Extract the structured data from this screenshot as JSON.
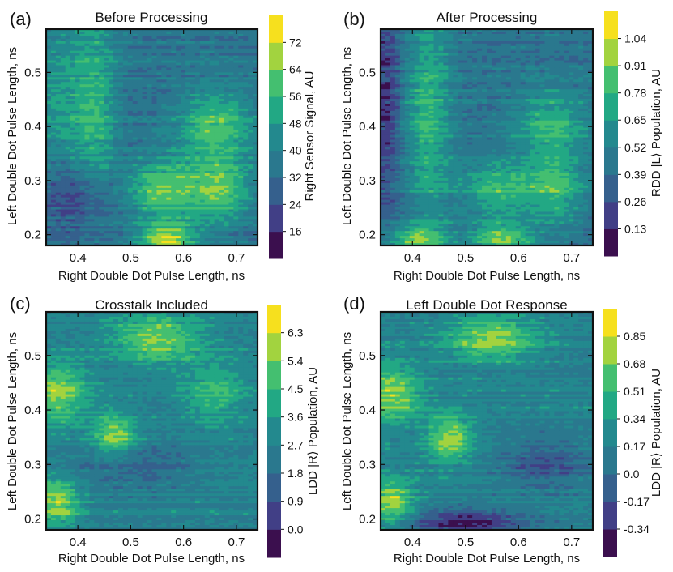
{
  "figure": {
    "panels": [
      {
        "label": "(a)",
        "title": "Before Processing",
        "xlabel": "Right Double Dot Pulse Length, ns",
        "ylabel": "Left Double Dot Pulse Length, ns",
        "colorbar_label": "Right Sensor Signal, AU"
      },
      {
        "label": "(b)",
        "title": "After Processing",
        "xlabel": "Right Double Dot Pulse Length, ns",
        "ylabel": "Left Double Dot Pulse Length, ns",
        "colorbar_label": "RDD |L⟩ Population, AU"
      },
      {
        "label": "(c)",
        "title": "Crosstalk Included",
        "xlabel": "Right Double Dot Pulse Length, ns",
        "ylabel": "Left Double Dot Pulse Length, ns",
        "colorbar_label": "LDD |R⟩ Population, AU"
      },
      {
        "label": "(d)",
        "title": "Left Double Dot Response",
        "xlabel": "Right Double Dot Pulse Length, ns",
        "ylabel": "Left Double Dot Pulse Length, ns",
        "colorbar_label": "LDD |R⟩ Population, AU"
      }
    ]
  },
  "chart_data": [
    {
      "type": "heatmap",
      "title": "Before Processing",
      "xlabel": "Right Double Dot Pulse Length, ns",
      "ylabel": "Left Double Dot Pulse Length, ns",
      "xlim": [
        0.34,
        0.74
      ],
      "ylim": [
        0.18,
        0.58
      ],
      "xticks": [
        0.4,
        0.5,
        0.6,
        0.7
      ],
      "xtick_labels": [
        "0.4",
        "0.5",
        "0.6",
        "0.7"
      ],
      "yticks": [
        0.2,
        0.3,
        0.4,
        0.5
      ],
      "ytick_labels": [
        "0.2",
        "0.3",
        "0.4",
        "0.5"
      ],
      "colorbar": {
        "label": "Right Sensor Signal, AU",
        "range": [
          8,
          80
        ],
        "levels": 9,
        "ticks": [
          16,
          24,
          32,
          40,
          48,
          56,
          64,
          72
        ],
        "tick_labels": [
          "16",
          "24",
          "32",
          "40",
          "48",
          "56",
          "64",
          "72"
        ]
      },
      "features": [
        {
          "x": 0.43,
          "y": 0.42,
          "amp": 0.35,
          "sx": 0.03,
          "sy": 0.14
        },
        {
          "x": 0.66,
          "y": 0.4,
          "amp": 0.4,
          "sx": 0.05,
          "sy": 0.05
        },
        {
          "x": 0.56,
          "y": 0.28,
          "amp": 0.45,
          "sx": 0.05,
          "sy": 0.04
        },
        {
          "x": 0.67,
          "y": 0.28,
          "amp": 0.4,
          "sx": 0.04,
          "sy": 0.04
        },
        {
          "x": 0.57,
          "y": 0.19,
          "amp": 0.55,
          "sx": 0.04,
          "sy": 0.02
        },
        {
          "x": 0.36,
          "y": 0.45,
          "amp": 0.2,
          "sx": 0.03,
          "sy": 0.1
        },
        {
          "x": 0.41,
          "y": 0.27,
          "amp": -0.3,
          "sx": 0.05,
          "sy": 0.05
        }
      ],
      "base": 0.35
    },
    {
      "type": "heatmap",
      "title": "After Processing",
      "xlabel": "Right Double Dot Pulse Length, ns",
      "ylabel": "Left Double Dot Pulse Length, ns",
      "xlim": [
        0.34,
        0.74
      ],
      "ylim": [
        0.18,
        0.58
      ],
      "xticks": [
        0.4,
        0.5,
        0.6,
        0.7
      ],
      "xtick_labels": [
        "0.4",
        "0.5",
        "0.6",
        "0.7"
      ],
      "yticks": [
        0.2,
        0.3,
        0.4,
        0.5
      ],
      "ytick_labels": [
        "0.2",
        "0.3",
        "0.4",
        "0.5"
      ],
      "colorbar": {
        "label": "RDD |L⟩ Population, AU",
        "range": [
          0.0,
          1.17
        ],
        "levels": 9,
        "ticks": [
          0.13,
          0.26,
          0.39,
          0.52,
          0.65,
          0.78,
          0.91,
          1.04
        ],
        "tick_labels": [
          "0.13",
          "0.26",
          "0.39",
          "0.52",
          "0.65",
          "0.78",
          "0.91",
          "1.04"
        ]
      },
      "features": [
        {
          "x": 0.43,
          "y": 0.42,
          "amp": 0.35,
          "sx": 0.03,
          "sy": 0.14
        },
        {
          "x": 0.66,
          "y": 0.4,
          "amp": 0.35,
          "sx": 0.05,
          "sy": 0.05
        },
        {
          "x": 0.56,
          "y": 0.28,
          "amp": 0.35,
          "sx": 0.05,
          "sy": 0.04
        },
        {
          "x": 0.67,
          "y": 0.28,
          "amp": 0.35,
          "sx": 0.04,
          "sy": 0.04
        },
        {
          "x": 0.41,
          "y": 0.19,
          "amp": 0.4,
          "sx": 0.04,
          "sy": 0.02
        },
        {
          "x": 0.57,
          "y": 0.19,
          "amp": 0.45,
          "sx": 0.04,
          "sy": 0.02
        },
        {
          "x": 0.35,
          "y": 0.45,
          "amp": -0.25,
          "sx": 0.02,
          "sy": 0.15
        }
      ],
      "base": 0.35
    },
    {
      "type": "heatmap",
      "title": "Crosstalk Included",
      "xlabel": "Right Double Dot Pulse Length, ns",
      "ylabel": "Left Double Dot Pulse Length, ns",
      "xlim": [
        0.34,
        0.74
      ],
      "ylim": [
        0.18,
        0.58
      ],
      "xticks": [
        0.4,
        0.5,
        0.6,
        0.7
      ],
      "xtick_labels": [
        "0.4",
        "0.5",
        "0.6",
        "0.7"
      ],
      "yticks": [
        0.2,
        0.3,
        0.4,
        0.5
      ],
      "ytick_labels": [
        "0.2",
        "0.3",
        "0.4",
        "0.5"
      ],
      "colorbar": {
        "label": "LDD |R⟩ Population, AU",
        "range": [
          -0.9,
          7.2
        ],
        "levels": 9,
        "ticks": [
          0.0,
          0.9,
          1.8,
          2.7,
          3.6,
          4.5,
          5.4,
          6.3
        ],
        "tick_labels": [
          "0.0",
          "0.9",
          "1.8",
          "2.7",
          "3.6",
          "4.5",
          "5.4",
          "6.3"
        ]
      },
      "features": [
        {
          "x": 0.55,
          "y": 0.53,
          "amp": 0.4,
          "sx": 0.06,
          "sy": 0.03
        },
        {
          "x": 0.36,
          "y": 0.43,
          "amp": 0.4,
          "sx": 0.04,
          "sy": 0.04
        },
        {
          "x": 0.47,
          "y": 0.35,
          "amp": 0.45,
          "sx": 0.03,
          "sy": 0.03
        },
        {
          "x": 0.36,
          "y": 0.23,
          "amp": 0.45,
          "sx": 0.03,
          "sy": 0.03
        },
        {
          "x": 0.66,
          "y": 0.43,
          "amp": 0.25,
          "sx": 0.04,
          "sy": 0.04
        },
        {
          "x": 0.5,
          "y": 0.3,
          "amp": -0.2,
          "sx": 0.08,
          "sy": 0.03
        }
      ],
      "base": 0.45
    },
    {
      "type": "heatmap",
      "title": "Left Double Dot Response",
      "xlabel": "Right Double Dot Pulse Length, ns",
      "ylabel": "Left Double Dot Pulse Length, ns",
      "xlim": [
        0.34,
        0.74
      ],
      "ylim": [
        0.18,
        0.58
      ],
      "xticks": [
        0.4,
        0.5,
        0.6,
        0.7
      ],
      "xtick_labels": [
        "0.4",
        "0.5",
        "0.6",
        "0.7"
      ],
      "yticks": [
        0.2,
        0.3,
        0.4,
        0.5
      ],
      "ytick_labels": [
        "0.2",
        "0.3",
        "0.4",
        "0.5"
      ],
      "colorbar": {
        "label": "LDD |R⟩ Population, AU",
        "range": [
          -0.51,
          1.02
        ],
        "levels": 9,
        "ticks": [
          -0.34,
          -0.17,
          0.0,
          0.17,
          0.34,
          0.51,
          0.68,
          0.85
        ],
        "tick_labels": [
          "-0.34",
          "-0.17",
          "0.0",
          "0.17",
          "0.34",
          "0.51",
          "0.68",
          "0.85"
        ]
      },
      "features": [
        {
          "x": 0.55,
          "y": 0.53,
          "amp": 0.4,
          "sx": 0.06,
          "sy": 0.03
        },
        {
          "x": 0.36,
          "y": 0.43,
          "amp": 0.4,
          "sx": 0.04,
          "sy": 0.04
        },
        {
          "x": 0.47,
          "y": 0.35,
          "amp": 0.45,
          "sx": 0.03,
          "sy": 0.03
        },
        {
          "x": 0.36,
          "y": 0.23,
          "amp": 0.45,
          "sx": 0.03,
          "sy": 0.03
        },
        {
          "x": 0.5,
          "y": 0.19,
          "amp": -0.4,
          "sx": 0.08,
          "sy": 0.02
        },
        {
          "x": 0.65,
          "y": 0.3,
          "amp": -0.25,
          "sx": 0.06,
          "sy": 0.03
        }
      ],
      "base": 0.45
    }
  ]
}
